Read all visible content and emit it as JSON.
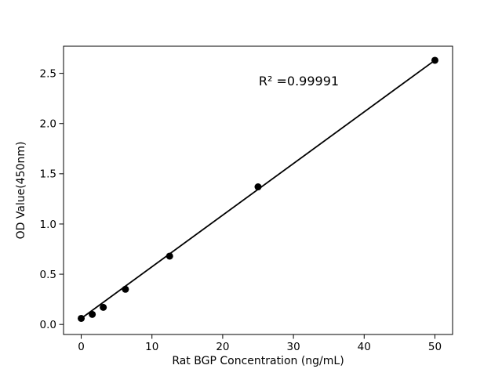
{
  "chart_data": {
    "type": "scatter",
    "title": "",
    "xlabel": "Rat BGP Concentration (ng/mL)",
    "ylabel": "OD Value(450nm)",
    "annotation": "R² =0.99991",
    "annotation_anchor": {
      "x": 25.1,
      "y": 2.38
    },
    "points": {
      "x": [
        0,
        1.56,
        3.12,
        6.25,
        12.5,
        25,
        50
      ],
      "y": [
        0.06,
        0.1,
        0.17,
        0.35,
        0.68,
        1.37,
        2.63
      ]
    },
    "fit_line": {
      "x": [
        0,
        50
      ],
      "y": [
        0.06,
        2.63
      ]
    },
    "xticks": {
      "values": [
        0,
        10,
        20,
        30,
        40,
        50
      ],
      "labels": [
        "0",
        "10",
        "20",
        "30",
        "40",
        "50"
      ]
    },
    "yticks": {
      "values": [
        0,
        0.5,
        1.0,
        1.5,
        2.0,
        2.5
      ],
      "labels": [
        "0.0",
        "0.5",
        "1.0",
        "1.5",
        "2.0",
        "2.5"
      ]
    },
    "xlim": [
      -2.5,
      52.5
    ],
    "ylim": [
      -0.1,
      2.77
    ],
    "grid": false,
    "legend_position": "none",
    "colors": {
      "marker": "#000000",
      "line": "#000000",
      "axis": "#000000",
      "background": "#ffffff"
    }
  }
}
